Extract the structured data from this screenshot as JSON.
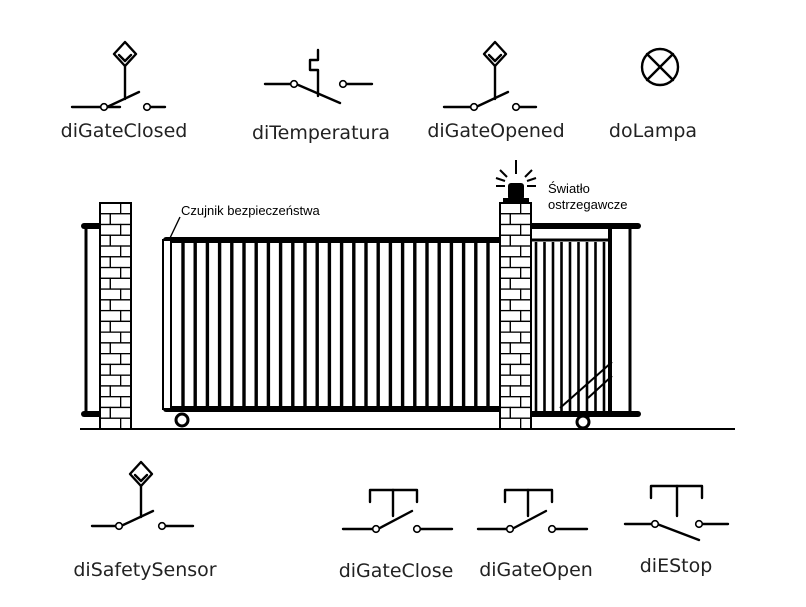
{
  "symbols": {
    "gate_closed": "diGateClosed",
    "temperatura": "diTemperatura",
    "gate_opened": "diGateOpened",
    "lampa": "doLampa",
    "safety_sensor": "diSafetySensor",
    "gate_close": "diGateClose",
    "gate_open": "diGateOpen",
    "estop": "diEStop"
  },
  "annotations": {
    "sensor": "Czujnik bezpieczeństwa",
    "light_line1": "Światło",
    "light_line2": "ostrzegawcze"
  }
}
